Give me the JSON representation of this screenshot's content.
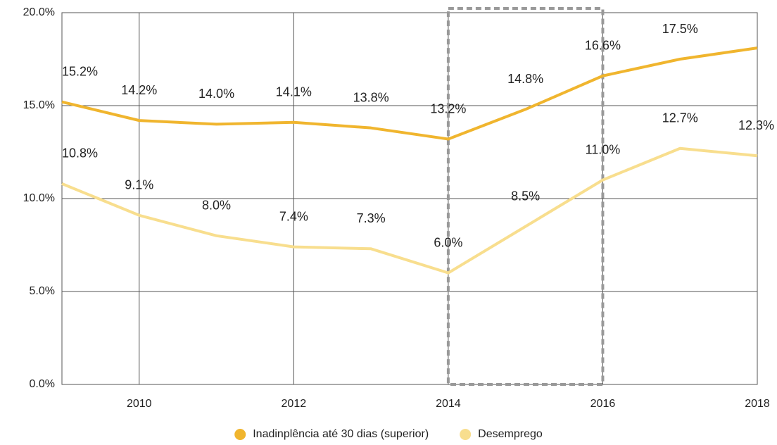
{
  "chart_data": {
    "type": "line",
    "x": [
      2009,
      2010,
      2011,
      2012,
      2013,
      2014,
      2015,
      2016,
      2017,
      2018
    ],
    "xlim": [
      2009,
      2018
    ],
    "xticks": [
      2010,
      2012,
      2014,
      2016,
      2018
    ],
    "ylim": [
      0,
      20
    ],
    "yticks": [
      {
        "value": 0,
        "label": "0.0%"
      },
      {
        "value": 5,
        "label": "5.0%"
      },
      {
        "value": 10,
        "label": "10.0%"
      },
      {
        "value": 15,
        "label": "15.0%"
      },
      {
        "value": 20,
        "label": "20.0%"
      }
    ],
    "grid": true,
    "legend": "bottom",
    "highlight_x": [
      2014,
      2016
    ],
    "series": [
      {
        "name": "Inadinplência até 30 dias (superior)",
        "color": "#f0b52e",
        "values": [
          15.2,
          14.2,
          14.0,
          14.1,
          13.8,
          13.2,
          14.8,
          16.6,
          17.5,
          18.1
        ],
        "value_labels": [
          "15.2%",
          "14.2%",
          "14.0%",
          "14.1%",
          "13.8%",
          "13.2%",
          "14.8%",
          "16.6%",
          "17.5%",
          null
        ]
      },
      {
        "name": "Desemprego",
        "color": "#f8de8e",
        "values": [
          10.8,
          9.1,
          8.0,
          7.4,
          7.3,
          6.0,
          8.5,
          11.0,
          12.7,
          12.3
        ],
        "value_labels": [
          "10.8%",
          "9.1%",
          "8.0%",
          "7.4%",
          "7.3%",
          "6.0%",
          "8.5%",
          "11.0%",
          "12.7%",
          "12.3%"
        ]
      }
    ]
  }
}
